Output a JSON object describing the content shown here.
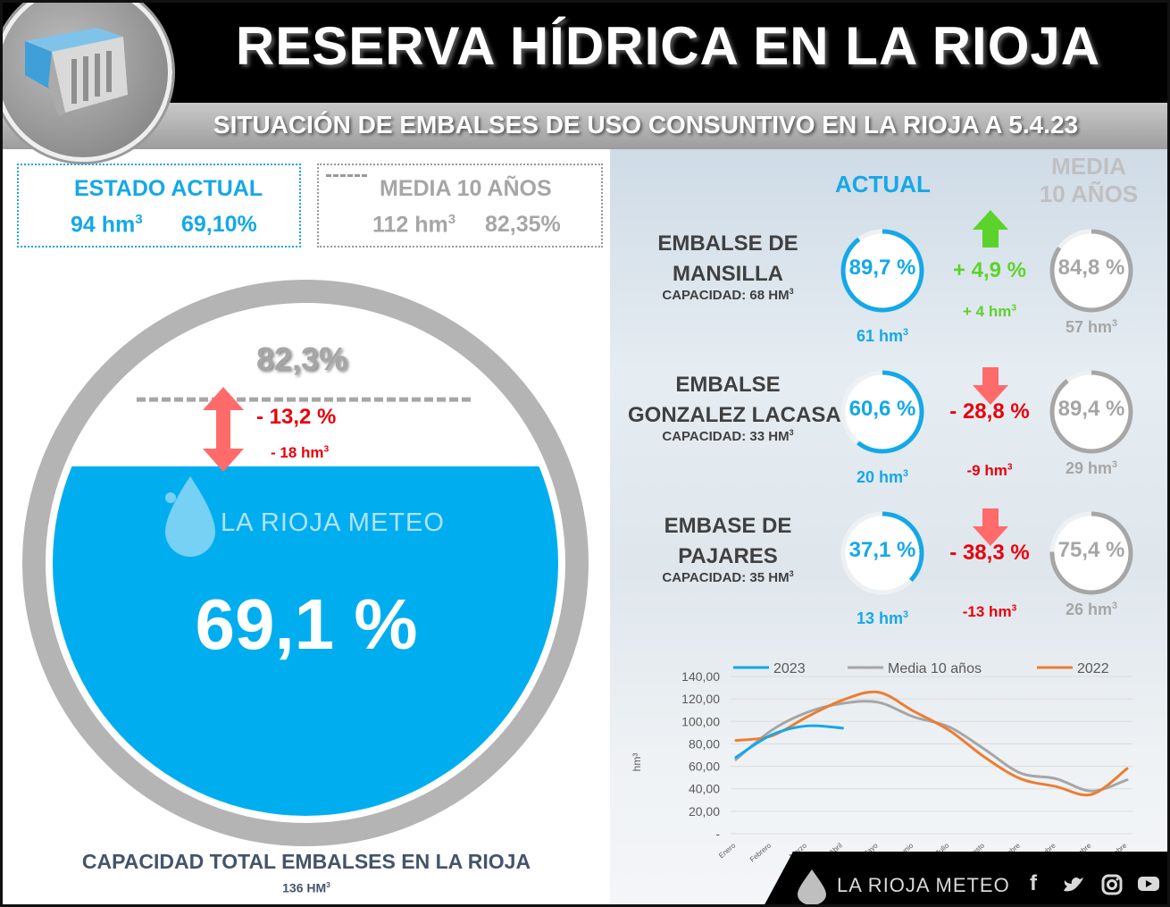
{
  "header": {
    "title": "RESERVA HÍDRICA EN LA RIOJA",
    "subtitle": "SITUACIÓN DE EMBALSES DE USO CONSUNTIVO EN LA RIOJA A 5.4.23"
  },
  "estado_actual": {
    "label": "ESTADO ACTUAL",
    "volume": "94 hm",
    "percent": "69,10%"
  },
  "media_10": {
    "label": "MEDIA 10 AÑOS",
    "volume": "112 hm",
    "percent": "82,35%"
  },
  "tank": {
    "fill_fraction": 0.691,
    "reference_fraction": 0.823,
    "reference_label": "82,3%",
    "diff_percent": "- 13,2 %",
    "diff_volume": "- 18 hm",
    "current_label": "69,1 %",
    "watermark": "LA RIOJA METEO",
    "caption": "CAPACIDAD TOTAL EMBALSES EN LA RIOJA",
    "capacity": "136 HM"
  },
  "columns": {
    "actual": "ACTUAL",
    "media_line1": "MEDIA",
    "media_line2": "10 AÑOS"
  },
  "reservoirs": [
    {
      "name_line1": "EMBALSE DE",
      "name_line2": "MANSILLA",
      "capacity": "CAPACIDAD: 68 HM",
      "actual_pct": "89,7 %",
      "actual_value": 89.7,
      "actual_vol": "61 hm",
      "diff_pct": "+ 4,9 %",
      "diff_vol": "+ 4 hm",
      "trend": "up",
      "media_pct": "84,8 %",
      "media_value": 84.8,
      "media_vol": "57 hm"
    },
    {
      "name_line1": "EMBALSE",
      "name_line2": "GONZALEZ LACASA",
      "capacity": "CAPACIDAD: 33 HM",
      "actual_pct": "60,6 %",
      "actual_value": 60.6,
      "actual_vol": "20 hm",
      "diff_pct": "- 28,8 %",
      "diff_vol": "-9 hm",
      "trend": "down",
      "media_pct": "89,4 %",
      "media_value": 89.4,
      "media_vol": "29 hm"
    },
    {
      "name_line1": "EMBASE DE",
      "name_line2": "PAJARES",
      "capacity": "CAPACIDAD: 35 HM",
      "actual_pct": "37,1 %",
      "actual_value": 37.1,
      "actual_vol": "13 hm",
      "diff_pct": "- 38,3 %",
      "diff_vol": "-13 hm",
      "trend": "down",
      "media_pct": "75,4 %",
      "media_value": 75.4,
      "media_vol": "26 hm"
    }
  ],
  "footer": {
    "brand": "LA RIOJA METEO"
  },
  "colors": {
    "blue": "#14a8e8",
    "gray": "#a6a6a6",
    "red": "#e8000b",
    "green": "#5bd32a",
    "orange": "#ed7d31",
    "water": "#00aeef"
  },
  "chart_data": {
    "type": "line",
    "ylabel": "hm³",
    "yticks": [
      "-",
      "20,00",
      "40,00",
      "60,00",
      "80,00",
      "100,00",
      "120,00",
      "140,00"
    ],
    "ylim": [
      0,
      140
    ],
    "categories": [
      "Enero",
      "Febrero",
      "Marzo",
      "Abril",
      "Mayo",
      "Junio",
      "Julio",
      "Agosto",
      "Septiembre",
      "Octubre",
      "Noviembre",
      "Diciembre"
    ],
    "legend_position": "top",
    "series": [
      {
        "name": "2023",
        "color": "#14a8e8",
        "x": [
          0,
          1,
          2,
          3
        ],
        "values": [
          68,
          88,
          96,
          94
        ]
      },
      {
        "name": "Media 10 años",
        "color": "#a6a6a6",
        "x": [
          0,
          1,
          2,
          3,
          4,
          5,
          6,
          7,
          8,
          9,
          10,
          11
        ],
        "values": [
          66,
          92,
          108,
          116,
          117,
          104,
          95,
          75,
          54,
          49,
          38,
          48
        ]
      },
      {
        "name": "2022",
        "color": "#ed7d31",
        "x": [
          0,
          1,
          2,
          3,
          4,
          5,
          6,
          7,
          8,
          9,
          10,
          11
        ],
        "values": [
          83,
          87,
          104,
          119,
          126,
          109,
          92,
          68,
          49,
          42,
          35,
          58
        ]
      }
    ]
  }
}
